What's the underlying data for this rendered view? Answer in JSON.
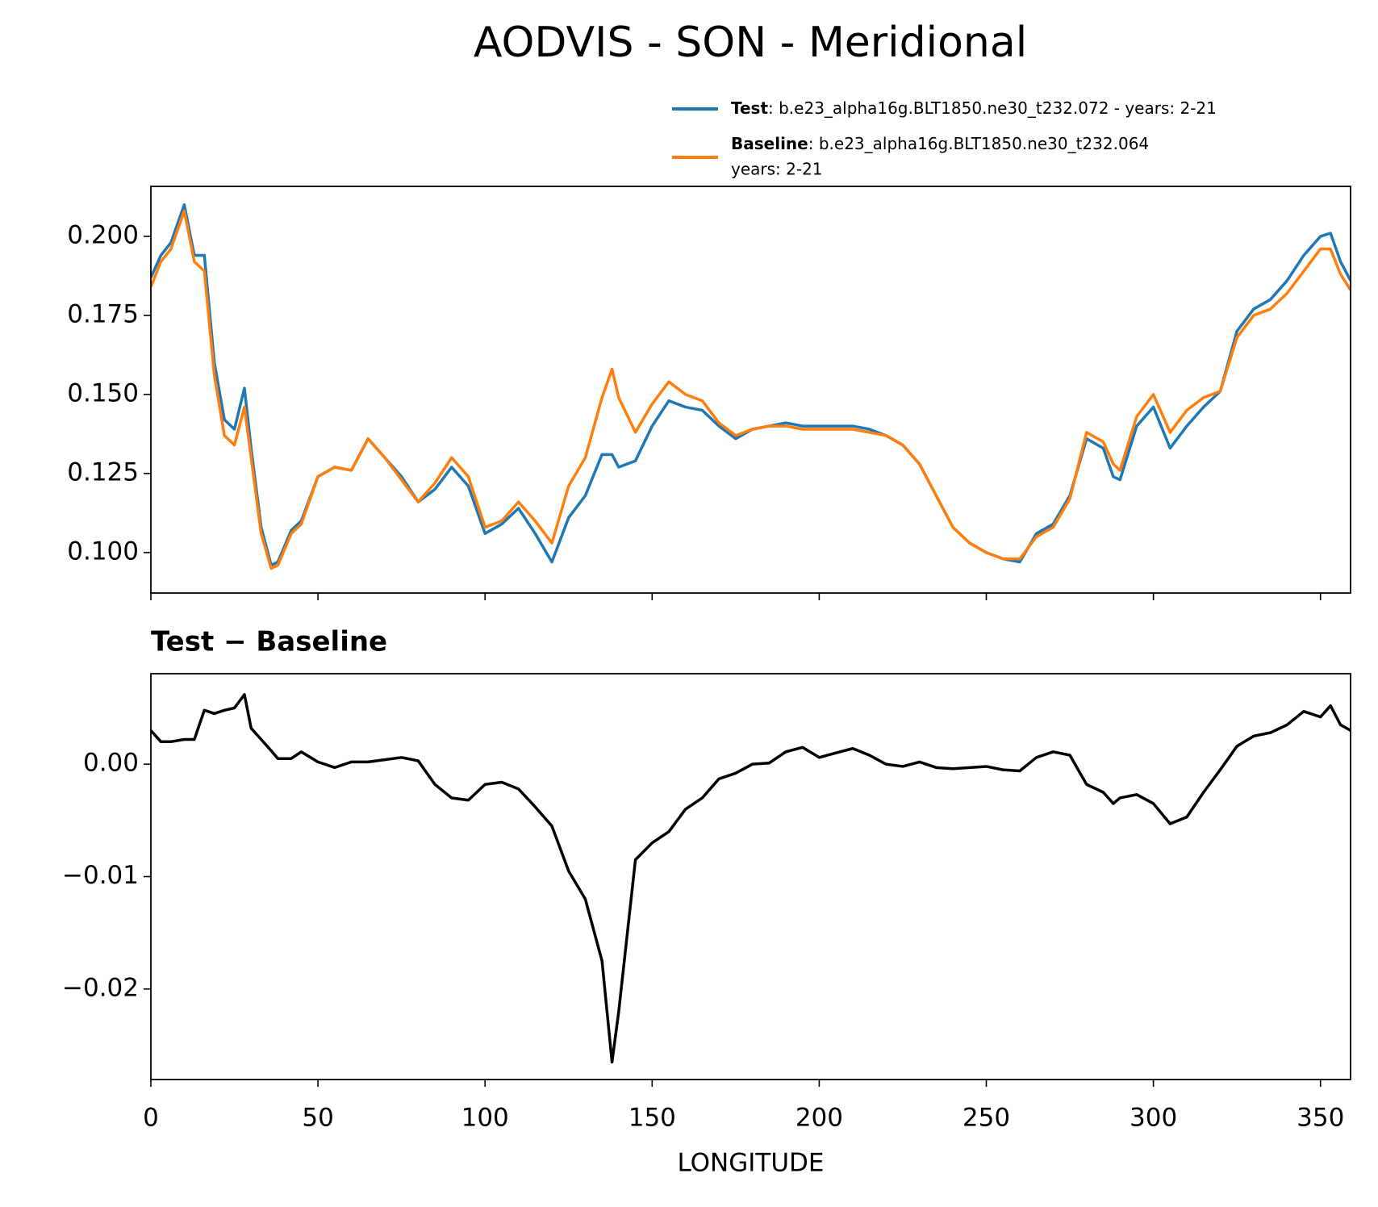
{
  "title": "AODVIS - SON - Meridional",
  "chart_data": [
    {
      "type": "line",
      "x": [
        0,
        3,
        6,
        10,
        13,
        16,
        19,
        22,
        25,
        28,
        30,
        33,
        36,
        38,
        42,
        45,
        50,
        55,
        60,
        65,
        70,
        75,
        80,
        85,
        90,
        95,
        100,
        105,
        110,
        115,
        120,
        125,
        130,
        135,
        138,
        140,
        145,
        150,
        155,
        160,
        165,
        170,
        175,
        180,
        185,
        190,
        195,
        200,
        205,
        210,
        215,
        220,
        225,
        230,
        235,
        240,
        245,
        250,
        255,
        260,
        265,
        270,
        275,
        280,
        285,
        288,
        290,
        295,
        300,
        305,
        310,
        315,
        320,
        325,
        330,
        335,
        340,
        345,
        350,
        353,
        356,
        359
      ],
      "series": [
        {
          "name": "Test",
          "case_lines": [
            ": b.e23_alpha16g.BLT1850.ne30_t232.072 - years: 2-21"
          ],
          "color": "#1f77b4",
          "values": [
            0.187,
            0.194,
            0.198,
            0.21,
            0.194,
            0.194,
            0.16,
            0.142,
            0.139,
            0.152,
            0.133,
            0.108,
            0.096,
            0.097,
            0.107,
            0.11,
            0.124,
            0.127,
            0.126,
            0.136,
            0.13,
            0.124,
            0.116,
            0.12,
            0.127,
            0.121,
            0.106,
            0.109,
            0.114,
            0.106,
            0.097,
            0.111,
            0.118,
            0.131,
            0.131,
            0.127,
            0.129,
            0.14,
            0.148,
            0.146,
            0.145,
            0.14,
            0.136,
            0.139,
            0.14,
            0.141,
            0.14,
            0.14,
            0.14,
            0.14,
            0.139,
            0.137,
            0.134,
            0.128,
            0.118,
            0.108,
            0.103,
            0.1,
            0.098,
            0.097,
            0.106,
            0.109,
            0.118,
            0.136,
            0.133,
            0.124,
            0.123,
            0.14,
            0.146,
            0.133,
            0.14,
            0.146,
            0.151,
            0.17,
            0.177,
            0.18,
            0.186,
            0.194,
            0.2,
            0.201,
            0.192,
            0.186
          ]
        },
        {
          "name": "Baseline",
          "case_lines": [
            ": b.e23_alpha16g.BLT1850.ne30_t232.064",
            "years: 2-21"
          ],
          "color": "#ff7f0e",
          "values": [
            0.184,
            0.192,
            0.196,
            0.208,
            0.192,
            0.189,
            0.156,
            0.137,
            0.134,
            0.146,
            0.13,
            0.106,
            0.095,
            0.096,
            0.106,
            0.109,
            0.124,
            0.127,
            0.126,
            0.136,
            0.13,
            0.123,
            0.116,
            0.122,
            0.13,
            0.124,
            0.108,
            0.11,
            0.116,
            0.11,
            0.103,
            0.121,
            0.13,
            0.149,
            0.158,
            0.149,
            0.138,
            0.147,
            0.154,
            0.15,
            0.148,
            0.141,
            0.137,
            0.139,
            0.14,
            0.14,
            0.139,
            0.139,
            0.139,
            0.139,
            0.138,
            0.137,
            0.134,
            0.128,
            0.118,
            0.108,
            0.103,
            0.1,
            0.098,
            0.098,
            0.105,
            0.108,
            0.117,
            0.138,
            0.135,
            0.128,
            0.126,
            0.143,
            0.15,
            0.138,
            0.145,
            0.149,
            0.151,
            0.168,
            0.175,
            0.177,
            0.182,
            0.189,
            0.196,
            0.196,
            0.188,
            0.183
          ]
        }
      ],
      "xlim": [
        0,
        359
      ],
      "xticks": [
        0,
        50,
        100,
        150,
        200,
        250,
        300,
        350
      ],
      "ylim": [
        0.0872,
        0.2158
      ],
      "yticks": [
        {
          "value": 0.1,
          "label": "0.100"
        },
        {
          "value": 0.125,
          "label": "0.125"
        },
        {
          "value": 0.15,
          "label": "0.150"
        },
        {
          "value": 0.175,
          "label": "0.175"
        },
        {
          "value": 0.2,
          "label": "0.200"
        }
      ]
    },
    {
      "type": "line",
      "title": "Test − Baseline",
      "xlabel": "LONGITUDE",
      "color": "#000000",
      "x": [
        0,
        3,
        6,
        10,
        13,
        16,
        19,
        22,
        25,
        28,
        30,
        33,
        36,
        38,
        42,
        45,
        50,
        55,
        60,
        65,
        70,
        75,
        80,
        85,
        90,
        95,
        100,
        105,
        110,
        115,
        120,
        125,
        130,
        135,
        138,
        140,
        145,
        150,
        155,
        160,
        165,
        170,
        175,
        180,
        185,
        190,
        195,
        200,
        205,
        210,
        215,
        220,
        225,
        230,
        235,
        240,
        245,
        250,
        255,
        260,
        265,
        270,
        275,
        280,
        285,
        288,
        290,
        295,
        300,
        305,
        310,
        315,
        320,
        325,
        330,
        335,
        340,
        345,
        350,
        353,
        356,
        359
      ],
      "values": [
        0.003,
        0.002,
        0.002,
        0.0022,
        0.0022,
        0.0048,
        0.0045,
        0.0048,
        0.005,
        0.0062,
        0.0032,
        0.0022,
        0.0012,
        0.0005,
        0.0005,
        0.0011,
        0.0002,
        -0.0003,
        0.0002,
        0.0002,
        0.0004,
        0.0006,
        0.0003,
        -0.0018,
        -0.003,
        -0.0032,
        -0.0018,
        -0.0016,
        -0.0022,
        -0.0038,
        -0.0055,
        -0.0095,
        -0.012,
        -0.0175,
        -0.0265,
        -0.022,
        -0.0085,
        -0.007,
        -0.006,
        -0.004,
        -0.003,
        -0.0013,
        -0.0008,
        0,
        0.0001,
        0.0011,
        0.0015,
        0.0006,
        0.001,
        0.0014,
        0.0008,
        0,
        -0.0002,
        0.0002,
        -0.0003,
        -0.0004,
        -0.0003,
        -0.0002,
        -0.0005,
        -0.0006,
        0.0006,
        0.0011,
        0.0008,
        -0.0018,
        -0.0025,
        -0.0035,
        -0.003,
        -0.0027,
        -0.0035,
        -0.0053,
        -0.0047,
        -0.0025,
        -0.0005,
        0.0016,
        0.0025,
        0.0028,
        0.0035,
        0.0047,
        0.0042,
        0.0052,
        0.0035,
        0.003
      ],
      "xlim": [
        0,
        359
      ],
      "xticks": [
        0,
        50,
        100,
        150,
        200,
        250,
        300,
        350
      ],
      "ylim": [
        -0.02805,
        0.00805
      ],
      "yticks": [
        {
          "value": -0.02,
          "label": "−0.02"
        },
        {
          "value": -0.01,
          "label": "−0.01"
        },
        {
          "value": 0,
          "label": "0.00"
        }
      ]
    }
  ]
}
